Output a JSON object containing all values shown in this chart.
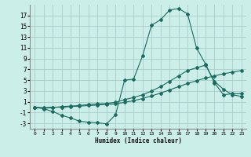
{
  "xlabel": "Humidex (Indice chaleur)",
  "bg_color": "#cceee8",
  "grid_color": "#aacccc",
  "line_color": "#1a6b60",
  "xlim": [
    -0.5,
    23.5
  ],
  "ylim": [
    -4,
    19
  ],
  "yticks": [
    -3,
    -1,
    1,
    3,
    5,
    7,
    9,
    11,
    13,
    15,
    17
  ],
  "xticks": [
    0,
    1,
    2,
    3,
    4,
    5,
    6,
    7,
    8,
    9,
    10,
    11,
    12,
    13,
    14,
    15,
    16,
    17,
    18,
    19,
    20,
    21,
    22,
    23
  ],
  "series1_x": [
    0,
    1,
    2,
    3,
    4,
    5,
    6,
    7,
    8,
    9,
    10,
    11,
    12,
    13,
    14,
    15,
    16,
    17,
    18,
    19,
    20,
    21,
    22,
    23
  ],
  "series1_y": [
    0.0,
    -0.3,
    -0.8,
    -1.5,
    -2.0,
    -2.6,
    -2.8,
    -2.9,
    -3.1,
    -1.4,
    5.0,
    5.2,
    9.5,
    15.2,
    16.2,
    18.0,
    18.3,
    17.3,
    11.0,
    8.0,
    4.5,
    2.3,
    2.5,
    2.5
  ],
  "series2_x": [
    0,
    1,
    2,
    3,
    4,
    5,
    6,
    7,
    8,
    9,
    10,
    11,
    12,
    13,
    14,
    15,
    16,
    17,
    18,
    19,
    20,
    21,
    22,
    23
  ],
  "series2_y": [
    0.0,
    -0.2,
    -0.1,
    0.1,
    0.2,
    0.3,
    0.5,
    0.6,
    0.7,
    0.9,
    1.4,
    1.8,
    2.3,
    3.0,
    3.8,
    4.8,
    5.8,
    6.8,
    7.3,
    7.8,
    4.8,
    3.3,
    2.3,
    2.0
  ],
  "series3_x": [
    0,
    1,
    2,
    3,
    4,
    5,
    6,
    7,
    8,
    9,
    10,
    11,
    12,
    13,
    14,
    15,
    16,
    17,
    18,
    19,
    20,
    21,
    22,
    23
  ],
  "series3_y": [
    0.0,
    -0.1,
    0.0,
    0.0,
    0.1,
    0.2,
    0.3,
    0.4,
    0.5,
    0.6,
    0.9,
    1.2,
    1.6,
    2.1,
    2.6,
    3.2,
    3.8,
    4.4,
    4.9,
    5.4,
    5.8,
    6.2,
    6.5,
    6.8
  ]
}
